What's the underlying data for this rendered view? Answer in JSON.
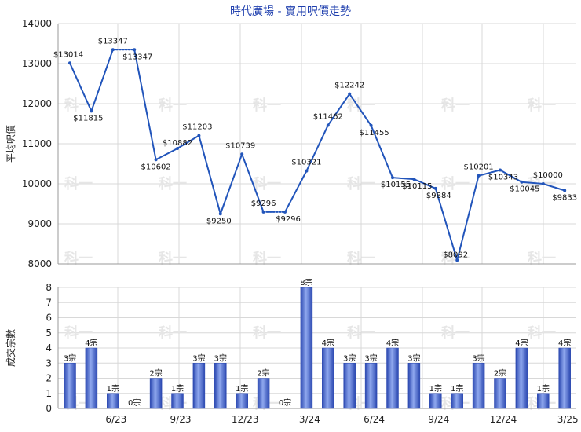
{
  "title": "時代廣場 - 實用呎價走勢",
  "watermark": "科一",
  "chart_data": [
    {
      "type": "line",
      "title": "時代廣場 - 實用呎價走勢",
      "ylabel": "平均呎價",
      "ylim": [
        8000,
        14000
      ],
      "yticks": [
        8000,
        9000,
        10000,
        11000,
        12000,
        13000,
        14000
      ],
      "grid": true,
      "color": "#2255bb",
      "points": [
        {
          "y": 13014,
          "label": "$13014"
        },
        {
          "y": 11815,
          "label": "$11815"
        },
        {
          "y": 13347,
          "label": "$13347"
        },
        {
          "y": 13347,
          "label": "$13347"
        },
        {
          "y": 10602,
          "label": "$10602"
        },
        {
          "y": 10882,
          "label": "$10882"
        },
        {
          "y": 11203,
          "label": "$11203"
        },
        {
          "y": 9250,
          "label": "$9250"
        },
        {
          "y": 10739,
          "label": "$10739"
        },
        {
          "y": 9296,
          "label": "$9296"
        },
        {
          "y": 9296,
          "label": "$9296"
        },
        {
          "y": 10321,
          "label": "$10321"
        },
        {
          "y": 11462,
          "label": "$11462"
        },
        {
          "y": 12242,
          "label": "$12242"
        },
        {
          "y": 11455,
          "label": "$11455"
        },
        {
          "y": 10155,
          "label": "$10155"
        },
        {
          "y": 10115,
          "label": "$10115"
        },
        {
          "y": 9884,
          "label": "$9884"
        },
        {
          "y": 8092,
          "label": "$8092"
        },
        {
          "y": 10201,
          "label": "$10201"
        },
        {
          "y": 10343,
          "label": "$10343"
        },
        {
          "y": 10045,
          "label": "$10045"
        },
        {
          "y": 10000,
          "label": "$10000"
        },
        {
          "y": 9833,
          "label": "$9833"
        }
      ],
      "dotted_segments": [
        [
          2,
          3
        ],
        [
          9,
          10
        ]
      ]
    },
    {
      "type": "bar",
      "ylabel": "成交宗數",
      "ylim": [
        0,
        8
      ],
      "yticks": [
        0,
        1,
        2,
        3,
        4,
        5,
        6,
        7,
        8
      ],
      "grid": true,
      "color": "#3a5fcc",
      "values": [
        3,
        4,
        1,
        0,
        2,
        1,
        3,
        3,
        1,
        2,
        0,
        8,
        4,
        3,
        3,
        4,
        3,
        1,
        1,
        3,
        2,
        4,
        1,
        4
      ],
      "labels": [
        "3宗",
        "4宗",
        "1宗",
        "0宗",
        "2宗",
        "1宗",
        "3宗",
        "3宗",
        "1宗",
        "2宗",
        "0宗",
        "8宗",
        "4宗",
        "3宗",
        "3宗",
        "4宗",
        "3宗",
        "1宗",
        "1宗",
        "3宗",
        "2宗",
        "4宗",
        "1宗",
        "4宗"
      ],
      "x_tick_labels": [
        {
          "at": 2,
          "text": "6/23"
        },
        {
          "at": 5,
          "text": "9/23"
        },
        {
          "at": 8,
          "text": "12/23"
        },
        {
          "at": 11,
          "text": "3/24"
        },
        {
          "at": 14,
          "text": "6/24"
        },
        {
          "at": 17,
          "text": "9/24"
        },
        {
          "at": 20,
          "text": "12/24"
        },
        {
          "at": 23,
          "text": "3/25"
        }
      ]
    }
  ]
}
